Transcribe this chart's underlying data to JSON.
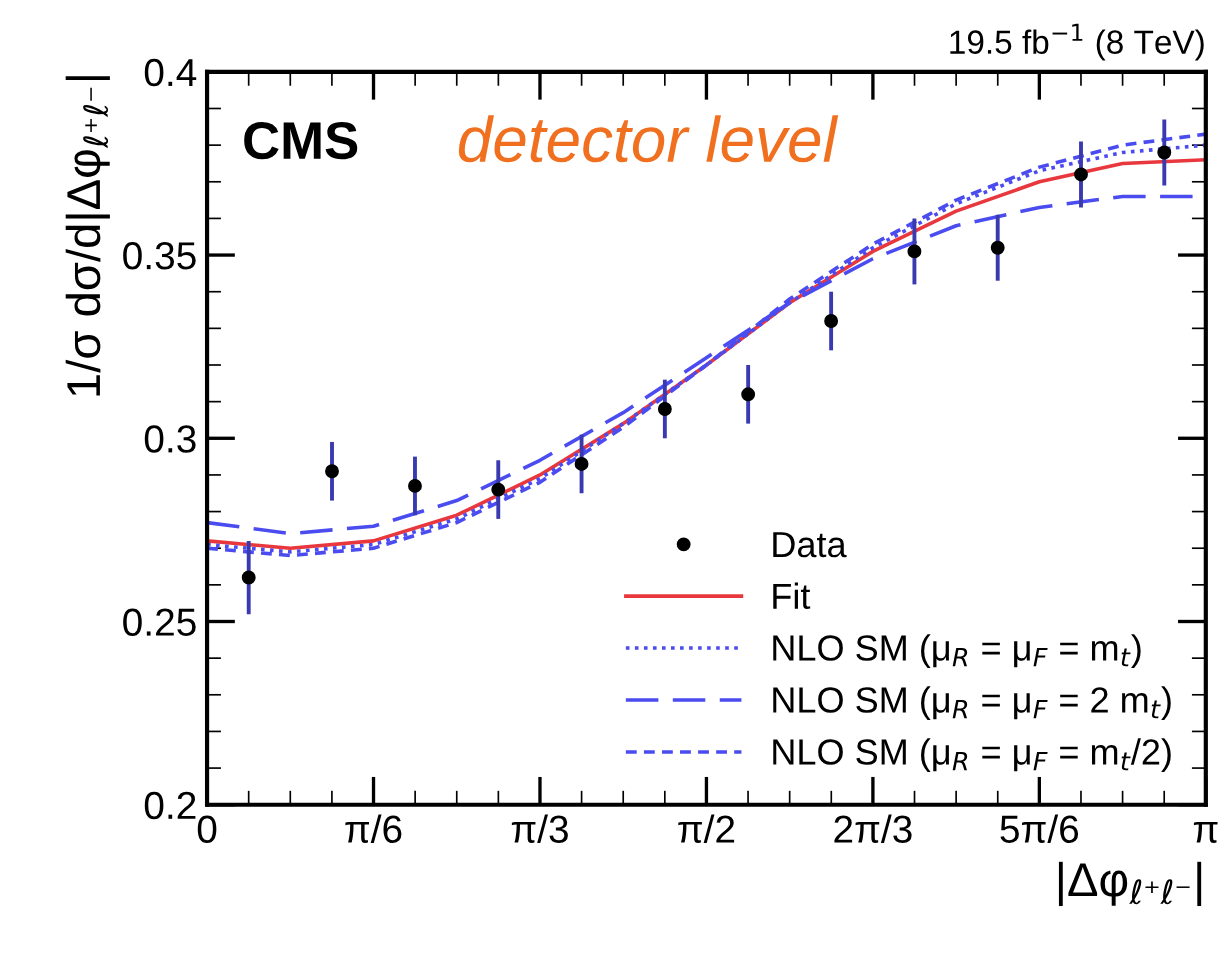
{
  "chart_data": {
    "type": "line",
    "xlabel": "|Δφ$_{ℓ⁺ℓ⁻}$|",
    "ylabel": "1/σ dσ/d|Δφ$_{ℓ⁺ℓ⁻}$|",
    "annotations": [
      "CMS",
      "detector level",
      "19.5 fb$^{−1}$ (8 TeV)"
    ],
    "xlim": [
      0,
      3.1416
    ],
    "ylim": [
      0.2,
      0.4
    ],
    "xticks": [
      0,
      {
        "value": 0.5236,
        "label": "π/6"
      },
      {
        "value": 1.0472,
        "label": "π/3"
      },
      {
        "value": 1.5708,
        "label": "π/2"
      },
      {
        "value": 2.0944,
        "label": "2π/3"
      },
      {
        "value": 2.618,
        "label": "5π/6"
      },
      {
        "value": 3.1416,
        "label": "π"
      }
    ],
    "yticks": [
      0.2,
      0.25,
      0.3,
      0.35,
      0.4
    ],
    "grid": false,
    "legend": "bottom right",
    "series": [
      {
        "name": "Data",
        "type": "scatter",
        "marker": "circle",
        "color": "#000000",
        "x": [
          0.131,
          0.393,
          0.654,
          0.916,
          1.178,
          1.44,
          1.702,
          1.963,
          2.225,
          2.487,
          2.749,
          3.011
        ],
        "values": [
          0.262,
          0.291,
          0.287,
          0.286,
          0.293,
          0.308,
          0.312,
          0.332,
          0.351,
          0.352,
          0.372,
          0.378
        ],
        "errors": [
          0.01,
          0.008,
          0.008,
          0.008,
          0.008,
          0.008,
          0.008,
          0.008,
          0.009,
          0.009,
          0.009,
          0.009
        ]
      },
      {
        "name": "Fit",
        "type": "line",
        "line_style": "solid",
        "color": "#e8383d",
        "x": [
          0,
          0.2618,
          0.5236,
          0.7854,
          1.0472,
          1.309,
          1.5708,
          1.8326,
          2.0944,
          2.3562,
          2.618,
          2.8798,
          3.1416
        ],
        "values": [
          0.272,
          0.27,
          0.272,
          0.279,
          0.29,
          0.304,
          0.32,
          0.337,
          0.351,
          0.362,
          0.37,
          0.375,
          0.376
        ]
      },
      {
        "name": "NLO SM (μ$_{R}$ = μ$_{F}$ = m$_{t}$)",
        "type": "line",
        "line_style": "dotted",
        "color": "#4a4cf0",
        "x": [
          0,
          0.2618,
          0.5236,
          0.7854,
          1.0472,
          1.309,
          1.5708,
          1.8326,
          2.0944,
          2.3562,
          2.618,
          2.8798,
          3.1416
        ],
        "values": [
          0.271,
          0.269,
          0.271,
          0.278,
          0.289,
          0.304,
          0.32,
          0.337,
          0.352,
          0.364,
          0.373,
          0.378,
          0.38
        ]
      },
      {
        "name": "NLO SM (μ$_{R}$ = μ$_{F}$ = 2 m$_{t}$)",
        "type": "line",
        "line_style": "dashed",
        "color": "#4a4cf0",
        "x": [
          0,
          0.2618,
          0.5236,
          0.7854,
          1.0472,
          1.309,
          1.5708,
          1.8326,
          2.0944,
          2.3562,
          2.618,
          2.8798,
          3.1416
        ],
        "values": [
          0.277,
          0.274,
          0.276,
          0.283,
          0.294,
          0.307,
          0.322,
          0.337,
          0.349,
          0.358,
          0.363,
          0.366,
          0.366
        ]
      },
      {
        "name": "NLO SM (μ$_{R}$ = μ$_{F}$ = m$_{t}$/2)",
        "type": "line",
        "line_style": "dashed",
        "color": "#4a4cf0",
        "x": [
          0,
          0.2618,
          0.5236,
          0.7854,
          1.0472,
          1.309,
          1.5708,
          1.8326,
          2.0944,
          2.3562,
          2.618,
          2.8798,
          3.1416
        ],
        "values": [
          0.27,
          0.268,
          0.27,
          0.277,
          0.288,
          0.303,
          0.32,
          0.338,
          0.353,
          0.365,
          0.374,
          0.38,
          0.383
        ]
      }
    ]
  }
}
